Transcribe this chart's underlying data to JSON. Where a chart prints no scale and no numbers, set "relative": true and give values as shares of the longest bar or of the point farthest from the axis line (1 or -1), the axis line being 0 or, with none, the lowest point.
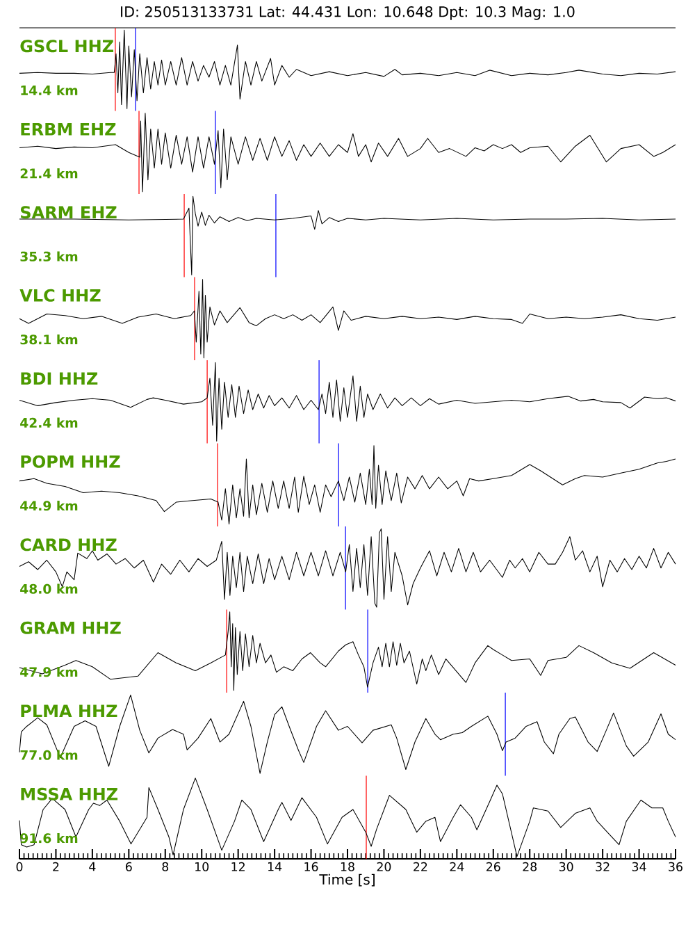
{
  "chart_data": [
    {
      "type": "line",
      "relative": true,
      "title": "ID: 250513133731 Lat:  44.431 Lon:  10.648 Dpt:    10.3 Mag:   1.0",
      "annotations": [
        "14.4 km"
      ],
      "xlim": [
        0,
        36
      ],
      "tick_labels": false,
      "x": [
        0,
        1,
        2,
        3,
        4,
        5,
        5.2,
        5.3,
        5.4,
        5.5,
        5.6,
        5.75,
        5.9,
        6.0,
        6.15,
        6.3,
        6.45,
        6.6,
        6.8,
        7.0,
        7.2,
        7.4,
        7.6,
        7.8,
        8.0,
        8.3,
        8.6,
        8.9,
        9.2,
        9.5,
        9.8,
        10.1,
        10.4,
        10.7,
        11.0,
        11.3,
        11.6,
        11.96,
        12.1,
        12.4,
        12.7,
        13.0,
        13.3,
        13.78,
        14.0,
        14.4,
        14.8,
        15.2,
        16,
        17,
        18,
        19,
        20,
        20.6,
        21,
        22,
        23,
        24,
        25,
        25.8,
        27,
        28,
        29,
        30,
        30.7,
        32,
        33,
        34,
        35,
        36
      ],
      "series": [
        {
          "name": "GSCL HHZ",
          "color": "#000000",
          "values": [
            0.45,
            0.46,
            0.45,
            0.45,
            0.44,
            0.46,
            0.46,
            0.7,
            0.2,
            0.85,
            0.05,
            1.0,
            0.0,
            0.8,
            0.15,
            0.75,
            0.1,
            0.7,
            0.2,
            0.65,
            0.25,
            0.6,
            0.3,
            0.62,
            0.3,
            0.6,
            0.3,
            0.65,
            0.3,
            0.6,
            0.35,
            0.55,
            0.4,
            0.6,
            0.3,
            0.55,
            0.3,
            0.81,
            0.12,
            0.6,
            0.3,
            0.6,
            0.35,
            0.64,
            0.3,
            0.55,
            0.4,
            0.5,
            0.42,
            0.47,
            0.42,
            0.46,
            0.41,
            0.5,
            0.43,
            0.45,
            0.42,
            0.46,
            0.42,
            0.49,
            0.42,
            0.45,
            0.43,
            0.46,
            0.49,
            0.44,
            0.42,
            0.45,
            0.44,
            0.47
          ]
        }
      ],
      "ref_lines": [
        {
          "axis": "x",
          "value": 5.26,
          "color": "#ff0000"
        },
        {
          "axis": "x",
          "value": 6.37,
          "color": "#0000ff"
        }
      ]
    },
    {
      "type": "line",
      "relative": true,
      "annotations": [
        "21.4 km"
      ],
      "xlim": [
        0,
        36
      ],
      "tick_labels": false,
      "x": [
        0,
        1,
        2,
        3,
        4,
        5.27,
        6,
        6.6,
        6.65,
        6.75,
        6.9,
        7.05,
        7.2,
        7.4,
        7.6,
        7.8,
        8,
        8.3,
        8.6,
        8.9,
        9.2,
        9.5,
        9.8,
        10.1,
        10.4,
        10.7,
        10.9,
        11.05,
        11.2,
        11.4,
        11.6,
        12,
        12.4,
        12.8,
        13.2,
        13.6,
        14,
        14.4,
        14.8,
        15.2,
        15.6,
        16,
        16.5,
        17,
        17.5,
        18,
        18.3,
        18.6,
        19,
        19.3,
        19.7,
        20.2,
        20.8,
        21.3,
        22,
        22.4,
        23,
        23.6,
        24.5,
        25,
        25.5,
        26,
        26.5,
        27,
        27.5,
        28,
        29,
        29.7,
        30.5,
        31.3,
        32.2,
        33,
        34,
        34.8,
        35.3,
        36
      ],
      "series": [
        {
          "name": "ERBM EHZ",
          "color": "#000000",
          "values": [
            0.56,
            0.58,
            0.55,
            0.57,
            0.56,
            0.6,
            0.5,
            0.44,
            0.9,
            0.0,
            1.0,
            0.15,
            0.8,
            0.3,
            0.8,
            0.35,
            0.75,
            0.3,
            0.72,
            0.35,
            0.7,
            0.25,
            0.7,
            0.3,
            0.7,
            0.35,
            0.78,
            0.05,
            0.8,
            0.15,
            0.7,
            0.35,
            0.7,
            0.4,
            0.68,
            0.4,
            0.7,
            0.45,
            0.65,
            0.4,
            0.6,
            0.45,
            0.62,
            0.45,
            0.6,
            0.5,
            0.74,
            0.45,
            0.6,
            0.38,
            0.62,
            0.45,
            0.68,
            0.45,
            0.55,
            0.68,
            0.5,
            0.55,
            0.45,
            0.56,
            0.52,
            0.6,
            0.55,
            0.6,
            0.5,
            0.56,
            0.58,
            0.38,
            0.58,
            0.72,
            0.38,
            0.55,
            0.6,
            0.45,
            0.5,
            0.6
          ]
        }
      ],
      "ref_lines": [
        {
          "axis": "x",
          "value": 6.56,
          "color": "#ff0000"
        },
        {
          "axis": "x",
          "value": 10.75,
          "color": "#0000ff"
        }
      ]
    },
    {
      "type": "line",
      "relative": true,
      "annotations": [
        "35.3 km"
      ],
      "xlim": [
        0,
        36
      ],
      "tick_labels": false,
      "x": [
        0,
        3,
        6,
        9,
        9.3,
        9.45,
        9.52,
        9.65,
        9.8,
        10.0,
        10.2,
        10.4,
        10.7,
        11,
        11.5,
        12,
        12.5,
        13,
        14,
        15,
        16.0,
        16.2,
        16.4,
        16.6,
        17,
        17.5,
        18,
        19,
        20,
        22,
        24,
        26,
        28,
        30,
        32,
        34,
        36
      ],
      "series": [
        {
          "name": "SARM EHZ",
          "color": "#000000",
          "values": [
            0.71,
            0.71,
            0.7,
            0.71,
            0.85,
            0.0,
            1.0,
            0.78,
            0.62,
            0.8,
            0.63,
            0.76,
            0.66,
            0.74,
            0.68,
            0.73,
            0.69,
            0.72,
            0.7,
            0.72,
            0.75,
            0.58,
            0.82,
            0.65,
            0.73,
            0.68,
            0.72,
            0.7,
            0.72,
            0.7,
            0.72,
            0.7,
            0.71,
            0.71,
            0.72,
            0.7,
            0.71
          ]
        }
      ],
      "ref_lines": [
        {
          "axis": "x",
          "value": 9.04,
          "color": "#ff0000"
        },
        {
          "axis": "x",
          "value": 14.07,
          "color": "#0000ff"
        }
      ]
    },
    {
      "type": "line",
      "relative": true,
      "annotations": [
        "38.1 km"
      ],
      "xlim": [
        0,
        36
      ],
      "tick_labels": false,
      "x": [
        0,
        0.5,
        1.5,
        2.5,
        3.5,
        4.5,
        5.64,
        6.5,
        7.5,
        8.5,
        9.4,
        9.6,
        9.7,
        9.85,
        9.95,
        10.05,
        10.12,
        10.2,
        10.3,
        10.45,
        10.7,
        11,
        11.4,
        12.1,
        12.6,
        13,
        13.5,
        14,
        14.5,
        15,
        15.5,
        16,
        16.5,
        17.2,
        17.5,
        17.8,
        18.2,
        19,
        20,
        21,
        22,
        23,
        24,
        25,
        26,
        27,
        27.6,
        28,
        29,
        30,
        31,
        32,
        33,
        34,
        35,
        36
      ],
      "series": [
        {
          "name": "VLC HHZ",
          "color": "#000000",
          "values": [
            0.5,
            0.44,
            0.56,
            0.54,
            0.5,
            0.53,
            0.44,
            0.52,
            0.56,
            0.5,
            0.54,
            0.6,
            0.2,
            0.85,
            0.05,
            1.0,
            0.0,
            0.8,
            0.2,
            0.65,
            0.42,
            0.6,
            0.45,
            0.64,
            0.45,
            0.41,
            0.5,
            0.55,
            0.5,
            0.55,
            0.48,
            0.55,
            0.45,
            0.65,
            0.35,
            0.6,
            0.48,
            0.53,
            0.5,
            0.53,
            0.5,
            0.52,
            0.49,
            0.53,
            0.5,
            0.49,
            0.44,
            0.56,
            0.5,
            0.52,
            0.5,
            0.52,
            0.55,
            0.5,
            0.48,
            0.52
          ]
        }
      ],
      "ref_lines": [
        {
          "axis": "x",
          "value": 9.61,
          "color": "#ff0000"
        }
      ]
    },
    {
      "type": "line",
      "relative": true,
      "annotations": [
        "42.4 km"
      ],
      "xlim": [
        0,
        36
      ],
      "tick_labels": false,
      "x": [
        0,
        1,
        2,
        3,
        4,
        5,
        6.1,
        7,
        7.34,
        8,
        9,
        10,
        10.3,
        10.45,
        10.6,
        10.75,
        10.82,
        10.95,
        11.1,
        11.25,
        11.45,
        11.65,
        11.85,
        12.05,
        12.3,
        12.55,
        12.8,
        13.1,
        13.4,
        13.7,
        14,
        14.4,
        14.8,
        15.2,
        15.6,
        16.0,
        16.4,
        16.6,
        16.8,
        17.0,
        17.2,
        17.4,
        17.6,
        17.8,
        18.0,
        18.3,
        18.5,
        18.7,
        18.9,
        19.1,
        19.4,
        19.8,
        20.2,
        20.6,
        21,
        21.5,
        22,
        22.5,
        23,
        24,
        25,
        26,
        27,
        28,
        29,
        30.1,
        30.8,
        31.5,
        32,
        33,
        33.5,
        34.3,
        35,
        35.5,
        36
      ],
      "series": [
        {
          "name": "BDI HHZ",
          "color": "#000000",
          "values": [
            0.52,
            0.45,
            0.49,
            0.52,
            0.54,
            0.52,
            0.43,
            0.53,
            0.55,
            0.52,
            0.47,
            0.5,
            0.55,
            0.8,
            0.2,
            1.0,
            0.0,
            0.8,
            0.15,
            0.75,
            0.3,
            0.72,
            0.3,
            0.7,
            0.35,
            0.65,
            0.4,
            0.6,
            0.42,
            0.58,
            0.45,
            0.55,
            0.42,
            0.58,
            0.4,
            0.52,
            0.4,
            0.6,
            0.35,
            0.75,
            0.3,
            0.78,
            0.25,
            0.68,
            0.3,
            0.83,
            0.25,
            0.7,
            0.3,
            0.6,
            0.4,
            0.6,
            0.42,
            0.55,
            0.45,
            0.55,
            0.45,
            0.54,
            0.47,
            0.52,
            0.48,
            0.5,
            0.52,
            0.5,
            0.54,
            0.57,
            0.51,
            0.53,
            0.5,
            0.49,
            0.42,
            0.56,
            0.54,
            0.55,
            0.51
          ]
        }
      ],
      "ref_lines": [
        {
          "axis": "x",
          "value": 10.3,
          "color": "#ff0000"
        },
        {
          "axis": "x",
          "value": 16.44,
          "color": "#0000ff"
        }
      ]
    },
    {
      "type": "line",
      "relative": true,
      "annotations": [
        "44.9 km"
      ],
      "xlim": [
        0,
        36
      ],
      "tick_labels": false,
      "x": [
        0,
        0.8,
        1.5,
        2.5,
        3.5,
        4.5,
        5.5,
        6.5,
        7.5,
        7.95,
        8.6,
        9.5,
        10.5,
        10.9,
        11.1,
        11.3,
        11.5,
        11.7,
        11.9,
        12.1,
        12.3,
        12.45,
        12.6,
        12.8,
        13,
        13.3,
        13.6,
        13.9,
        14.2,
        14.5,
        14.8,
        15.1,
        15.3,
        15.6,
        15.9,
        16.2,
        16.5,
        16.8,
        17.1,
        17.5,
        17.8,
        18.1,
        18.4,
        18.7,
        19.0,
        19.2,
        19.35,
        19.45,
        19.55,
        19.7,
        19.9,
        20.1,
        20.4,
        20.7,
        20.95,
        21.3,
        21.7,
        22.1,
        22.5,
        23,
        23.5,
        24,
        24.35,
        24.7,
        25.2,
        26,
        27,
        28,
        28.6,
        29.8,
        30.5,
        31,
        32,
        33,
        34,
        35,
        35.5,
        36
      ],
      "series": [
        {
          "name": "POPM HHZ",
          "color": "#000000",
          "values": [
            0.55,
            0.58,
            0.52,
            0.48,
            0.4,
            0.42,
            0.4,
            0.36,
            0.3,
            0.16,
            0.28,
            0.3,
            0.32,
            0.28,
            0.05,
            0.45,
            0.0,
            0.5,
            0.08,
            0.45,
            0.1,
            0.83,
            0.08,
            0.5,
            0.12,
            0.52,
            0.15,
            0.55,
            0.2,
            0.55,
            0.2,
            0.6,
            0.15,
            0.61,
            0.25,
            0.5,
            0.15,
            0.5,
            0.35,
            0.55,
            0.3,
            0.6,
            0.28,
            0.65,
            0.25,
            0.7,
            0.25,
            1.0,
            0.2,
            0.75,
            0.25,
            0.68,
            0.3,
            0.65,
            0.27,
            0.6,
            0.45,
            0.62,
            0.45,
            0.6,
            0.45,
            0.55,
            0.36,
            0.58,
            0.55,
            0.58,
            0.62,
            0.76,
            0.68,
            0.5,
            0.58,
            0.62,
            0.6,
            0.65,
            0.7,
            0.78,
            0.8,
            0.83
          ]
        }
      ],
      "ref_lines": [
        {
          "axis": "x",
          "value": 10.87,
          "color": "#ff0000"
        },
        {
          "axis": "x",
          "value": 17.51,
          "color": "#0000ff"
        }
      ]
    },
    {
      "type": "line",
      "relative": true,
      "annotations": [
        "48.0 km"
      ],
      "xlim": [
        0,
        36
      ],
      "tick_labels": false,
      "x": [
        0,
        0.5,
        1,
        1.5,
        2,
        2.35,
        2.6,
        3,
        3.2,
        3.7,
        4,
        4.3,
        4.8,
        5.3,
        5.8,
        6.3,
        6.8,
        7.35,
        7.8,
        8.3,
        8.8,
        9.3,
        9.8,
        10.3,
        10.8,
        11.1,
        11.25,
        11.4,
        11.55,
        11.7,
        11.9,
        12.1,
        12.3,
        12.5,
        12.8,
        13.1,
        13.4,
        13.7,
        14,
        14.4,
        14.8,
        15.2,
        15.6,
        16,
        16.4,
        16.8,
        17.2,
        17.6,
        17.9,
        18.1,
        18.3,
        18.5,
        18.7,
        18.9,
        19.1,
        19.3,
        19.5,
        19.6,
        19.75,
        19.85,
        20,
        20.2,
        20.4,
        20.6,
        21.0,
        21.3,
        21.6,
        22,
        22.5,
        22.9,
        23.3,
        23.7,
        24.1,
        24.5,
        24.9,
        25.3,
        25.8,
        26.5,
        26.9,
        27.2,
        27.6,
        28.0,
        28.5,
        29.0,
        29.4,
        29.8,
        30.2,
        30.5,
        30.9,
        31.3,
        31.7,
        32.0,
        32.4,
        32.8,
        33.2,
        33.6,
        34,
        34.4,
        34.8,
        35.2,
        35.6,
        36
      ],
      "series": [
        {
          "name": "CARD HHZ",
          "color": "#000000",
          "values": [
            0.52,
            0.58,
            0.48,
            0.6,
            0.45,
            0.26,
            0.45,
            0.35,
            0.69,
            0.62,
            0.72,
            0.6,
            0.68,
            0.55,
            0.62,
            0.5,
            0.6,
            0.32,
            0.55,
            0.42,
            0.6,
            0.45,
            0.62,
            0.52,
            0.6,
            0.84,
            0.1,
            0.7,
            0.15,
            0.65,
            0.25,
            0.7,
            0.2,
            0.65,
            0.3,
            0.68,
            0.3,
            0.62,
            0.35,
            0.65,
            0.35,
            0.7,
            0.4,
            0.7,
            0.4,
            0.72,
            0.4,
            0.7,
            0.45,
            0.8,
            0.2,
            0.75,
            0.25,
            0.8,
            0.15,
            0.9,
            0.05,
            0.0,
            0.95,
            1.0,
            0.1,
            0.9,
            0.2,
            0.7,
            0.4,
            0.03,
            0.3,
            0.5,
            0.72,
            0.4,
            0.7,
            0.45,
            0.75,
            0.45,
            0.7,
            0.45,
            0.6,
            0.38,
            0.6,
            0.5,
            0.62,
            0.45,
            0.7,
            0.55,
            0.55,
            0.7,
            0.9,
            0.6,
            0.72,
            0.45,
            0.65,
            0.26,
            0.6,
            0.45,
            0.62,
            0.48,
            0.65,
            0.5,
            0.75,
            0.5,
            0.7,
            0.55
          ]
        }
      ],
      "ref_lines": [
        {
          "axis": "x",
          "value": 17.89,
          "color": "#0000ff"
        }
      ]
    },
    {
      "type": "line",
      "relative": true,
      "annotations": [
        "47.9 km"
      ],
      "xlim": [
        0,
        36
      ],
      "tick_labels": false,
      "x": [
        0,
        1.25,
        2.5,
        3.1,
        4,
        5.0,
        6.5,
        7.6,
        8.6,
        9.65,
        10.5,
        11.3,
        11.45,
        11.54,
        11.62,
        11.7,
        11.76,
        11.85,
        11.95,
        12.1,
        12.25,
        12.4,
        12.6,
        12.8,
        13.0,
        13.2,
        13.5,
        13.8,
        14.1,
        14.5,
        15,
        15.5,
        15.97,
        16.5,
        16.8,
        17.5,
        17.9,
        18.3,
        18.6,
        18.9,
        19.1,
        19.4,
        19.7,
        19.9,
        20.1,
        20.3,
        20.5,
        20.7,
        20.9,
        21.1,
        21.4,
        21.8,
        22.1,
        22.3,
        22.6,
        23.0,
        23.4,
        24.5,
        25,
        25.7,
        26,
        26.5,
        27,
        28,
        28.6,
        29,
        30,
        30.7,
        31.5,
        32.5,
        33.5,
        34.8,
        36
      ],
      "series": [
        {
          "name": "GRAM HHZ",
          "color": "#000000",
          "values": [
            0.29,
            0.21,
            0.32,
            0.38,
            0.3,
            0.14,
            0.18,
            0.48,
            0.35,
            0.25,
            0.35,
            0.45,
            0.75,
            1.0,
            0.3,
            0.85,
            0.0,
            0.8,
            0.2,
            0.75,
            0.25,
            0.72,
            0.3,
            0.7,
            0.35,
            0.6,
            0.35,
            0.45,
            0.23,
            0.3,
            0.25,
            0.4,
            0.48,
            0.35,
            0.3,
            0.5,
            0.58,
            0.62,
            0.45,
            0.3,
            0.04,
            0.35,
            0.55,
            0.3,
            0.6,
            0.3,
            0.62,
            0.32,
            0.6,
            0.35,
            0.5,
            0.08,
            0.4,
            0.25,
            0.45,
            0.2,
            0.4,
            0.1,
            0.35,
            0.57,
            0.52,
            0.45,
            0.38,
            0.4,
            0.19,
            0.38,
            0.42,
            0.57,
            0.48,
            0.35,
            0.28,
            0.48,
            0.32
          ]
        }
      ],
      "ref_lines": [
        {
          "axis": "x",
          "value": 11.37,
          "color": "#ff0000"
        },
        {
          "axis": "x",
          "value": 19.11,
          "color": "#0000ff"
        }
      ]
    },
    {
      "type": "line",
      "relative": true,
      "annotations": [
        "77.0 km"
      ],
      "xlim": [
        0,
        36
      ],
      "tick_labels": false,
      "x": [
        0,
        0.1,
        0.4,
        1.0,
        1.5,
        2.24,
        3.0,
        3.6,
        4.2,
        4.9,
        5.5,
        6.1,
        6.6,
        7.1,
        7.6,
        8.4,
        9.0,
        9.2,
        9.8,
        10.5,
        11.0,
        11.5,
        12.3,
        12.7,
        13.2,
        13.6,
        14.0,
        14.4,
        14.8,
        15.3,
        15.6,
        16.3,
        16.8,
        17.5,
        18.0,
        18.8,
        19.4,
        20.4,
        20.7,
        21.2,
        21.7,
        22.3,
        22.8,
        23.1,
        23.8,
        24.3,
        24.8,
        25.7,
        26.2,
        26.5,
        26.7,
        27.2,
        27.8,
        28.4,
        28.8,
        29.3,
        29.6,
        30.2,
        30.5,
        31.2,
        31.7,
        32.2,
        32.6,
        33.3,
        33.7,
        34.5,
        35.2,
        35.6,
        36
      ],
      "series": [
        {
          "name": "PLMA HHZ",
          "color": "#000000",
          "values": [
            0.27,
            0.53,
            0.6,
            0.71,
            0.62,
            0.2,
            0.6,
            0.67,
            0.6,
            0.09,
            0.6,
            1.0,
            0.55,
            0.26,
            0.45,
            0.56,
            0.5,
            0.3,
            0.45,
            0.7,
            0.4,
            0.5,
            0.92,
            0.6,
            0.0,
            0.4,
            0.75,
            0.85,
            0.6,
            0.3,
            0.14,
            0.6,
            0.8,
            0.55,
            0.6,
            0.39,
            0.55,
            0.62,
            0.45,
            0.05,
            0.4,
            0.7,
            0.5,
            0.43,
            0.5,
            0.52,
            0.6,
            0.73,
            0.5,
            0.29,
            0.4,
            0.45,
            0.6,
            0.66,
            0.4,
            0.25,
            0.5,
            0.7,
            0.72,
            0.4,
            0.28,
            0.55,
            0.77,
            0.35,
            0.22,
            0.4,
            0.76,
            0.5,
            0.43
          ]
        }
      ],
      "ref_lines": [
        {
          "axis": "x",
          "value": 26.66,
          "color": "#0000ff"
        }
      ]
    },
    {
      "type": "line",
      "relative": true,
      "annotations": [
        "91.6 km"
      ],
      "xlim": [
        0,
        36
      ],
      "xticks": [
        0,
        2,
        4,
        6,
        8,
        10,
        12,
        14,
        16,
        18,
        20,
        22,
        24,
        26,
        28,
        30,
        32,
        34,
        36
      ],
      "xlabel": "Time [s]",
      "tick_labels": "x",
      "x": [
        0,
        0.1,
        0.4,
        0.8,
        1.3,
        1.8,
        2.5,
        3.1,
        3.8,
        4.06,
        4.4,
        4.8,
        5.5,
        6.12,
        7.0,
        7.1,
        7.6,
        8.2,
        8.43,
        9.0,
        9.65,
        10.3,
        11.1,
        11.8,
        12.2,
        12.7,
        13.4,
        14.2,
        14.4,
        14.9,
        15.5,
        16.3,
        16.9,
        17.7,
        18.3,
        19.0,
        19.3,
        19.6,
        20.3,
        21.2,
        21.8,
        22.3,
        22.8,
        23.1,
        23.8,
        24.2,
        24.8,
        25.1,
        25.8,
        26.2,
        26.5,
        27.3,
        28,
        28.2,
        29,
        29.7,
        30.5,
        31.3,
        31.7,
        32.3,
        32.9,
        33.3,
        34.1,
        34.7,
        35.3,
        35.6,
        36
      ],
      "series": [
        {
          "name": "MSSA HHZ",
          "color": "#000000",
          "values": [
            0.46,
            0.15,
            0.12,
            0.15,
            0.6,
            0.74,
            0.6,
            0.25,
            0.6,
            0.68,
            0.65,
            0.72,
            0.45,
            0.16,
            0.5,
            0.88,
            0.6,
            0.25,
            0.02,
            0.6,
            1.0,
            0.6,
            0.08,
            0.45,
            0.72,
            0.6,
            0.19,
            0.6,
            0.69,
            0.46,
            0.75,
            0.5,
            0.16,
            0.5,
            0.6,
            0.31,
            0.13,
            0.35,
            0.78,
            0.6,
            0.31,
            0.45,
            0.5,
            0.19,
            0.5,
            0.66,
            0.5,
            0.34,
            0.7,
            0.91,
            0.8,
            0.0,
            0.45,
            0.62,
            0.58,
            0.37,
            0.55,
            0.62,
            0.45,
            0.3,
            0.15,
            0.45,
            0.72,
            0.62,
            0.62,
            0.45,
            0.25
          ]
        }
      ],
      "ref_lines": [
        {
          "axis": "x",
          "value": 19.03,
          "color": "#ff0000"
        }
      ]
    }
  ]
}
